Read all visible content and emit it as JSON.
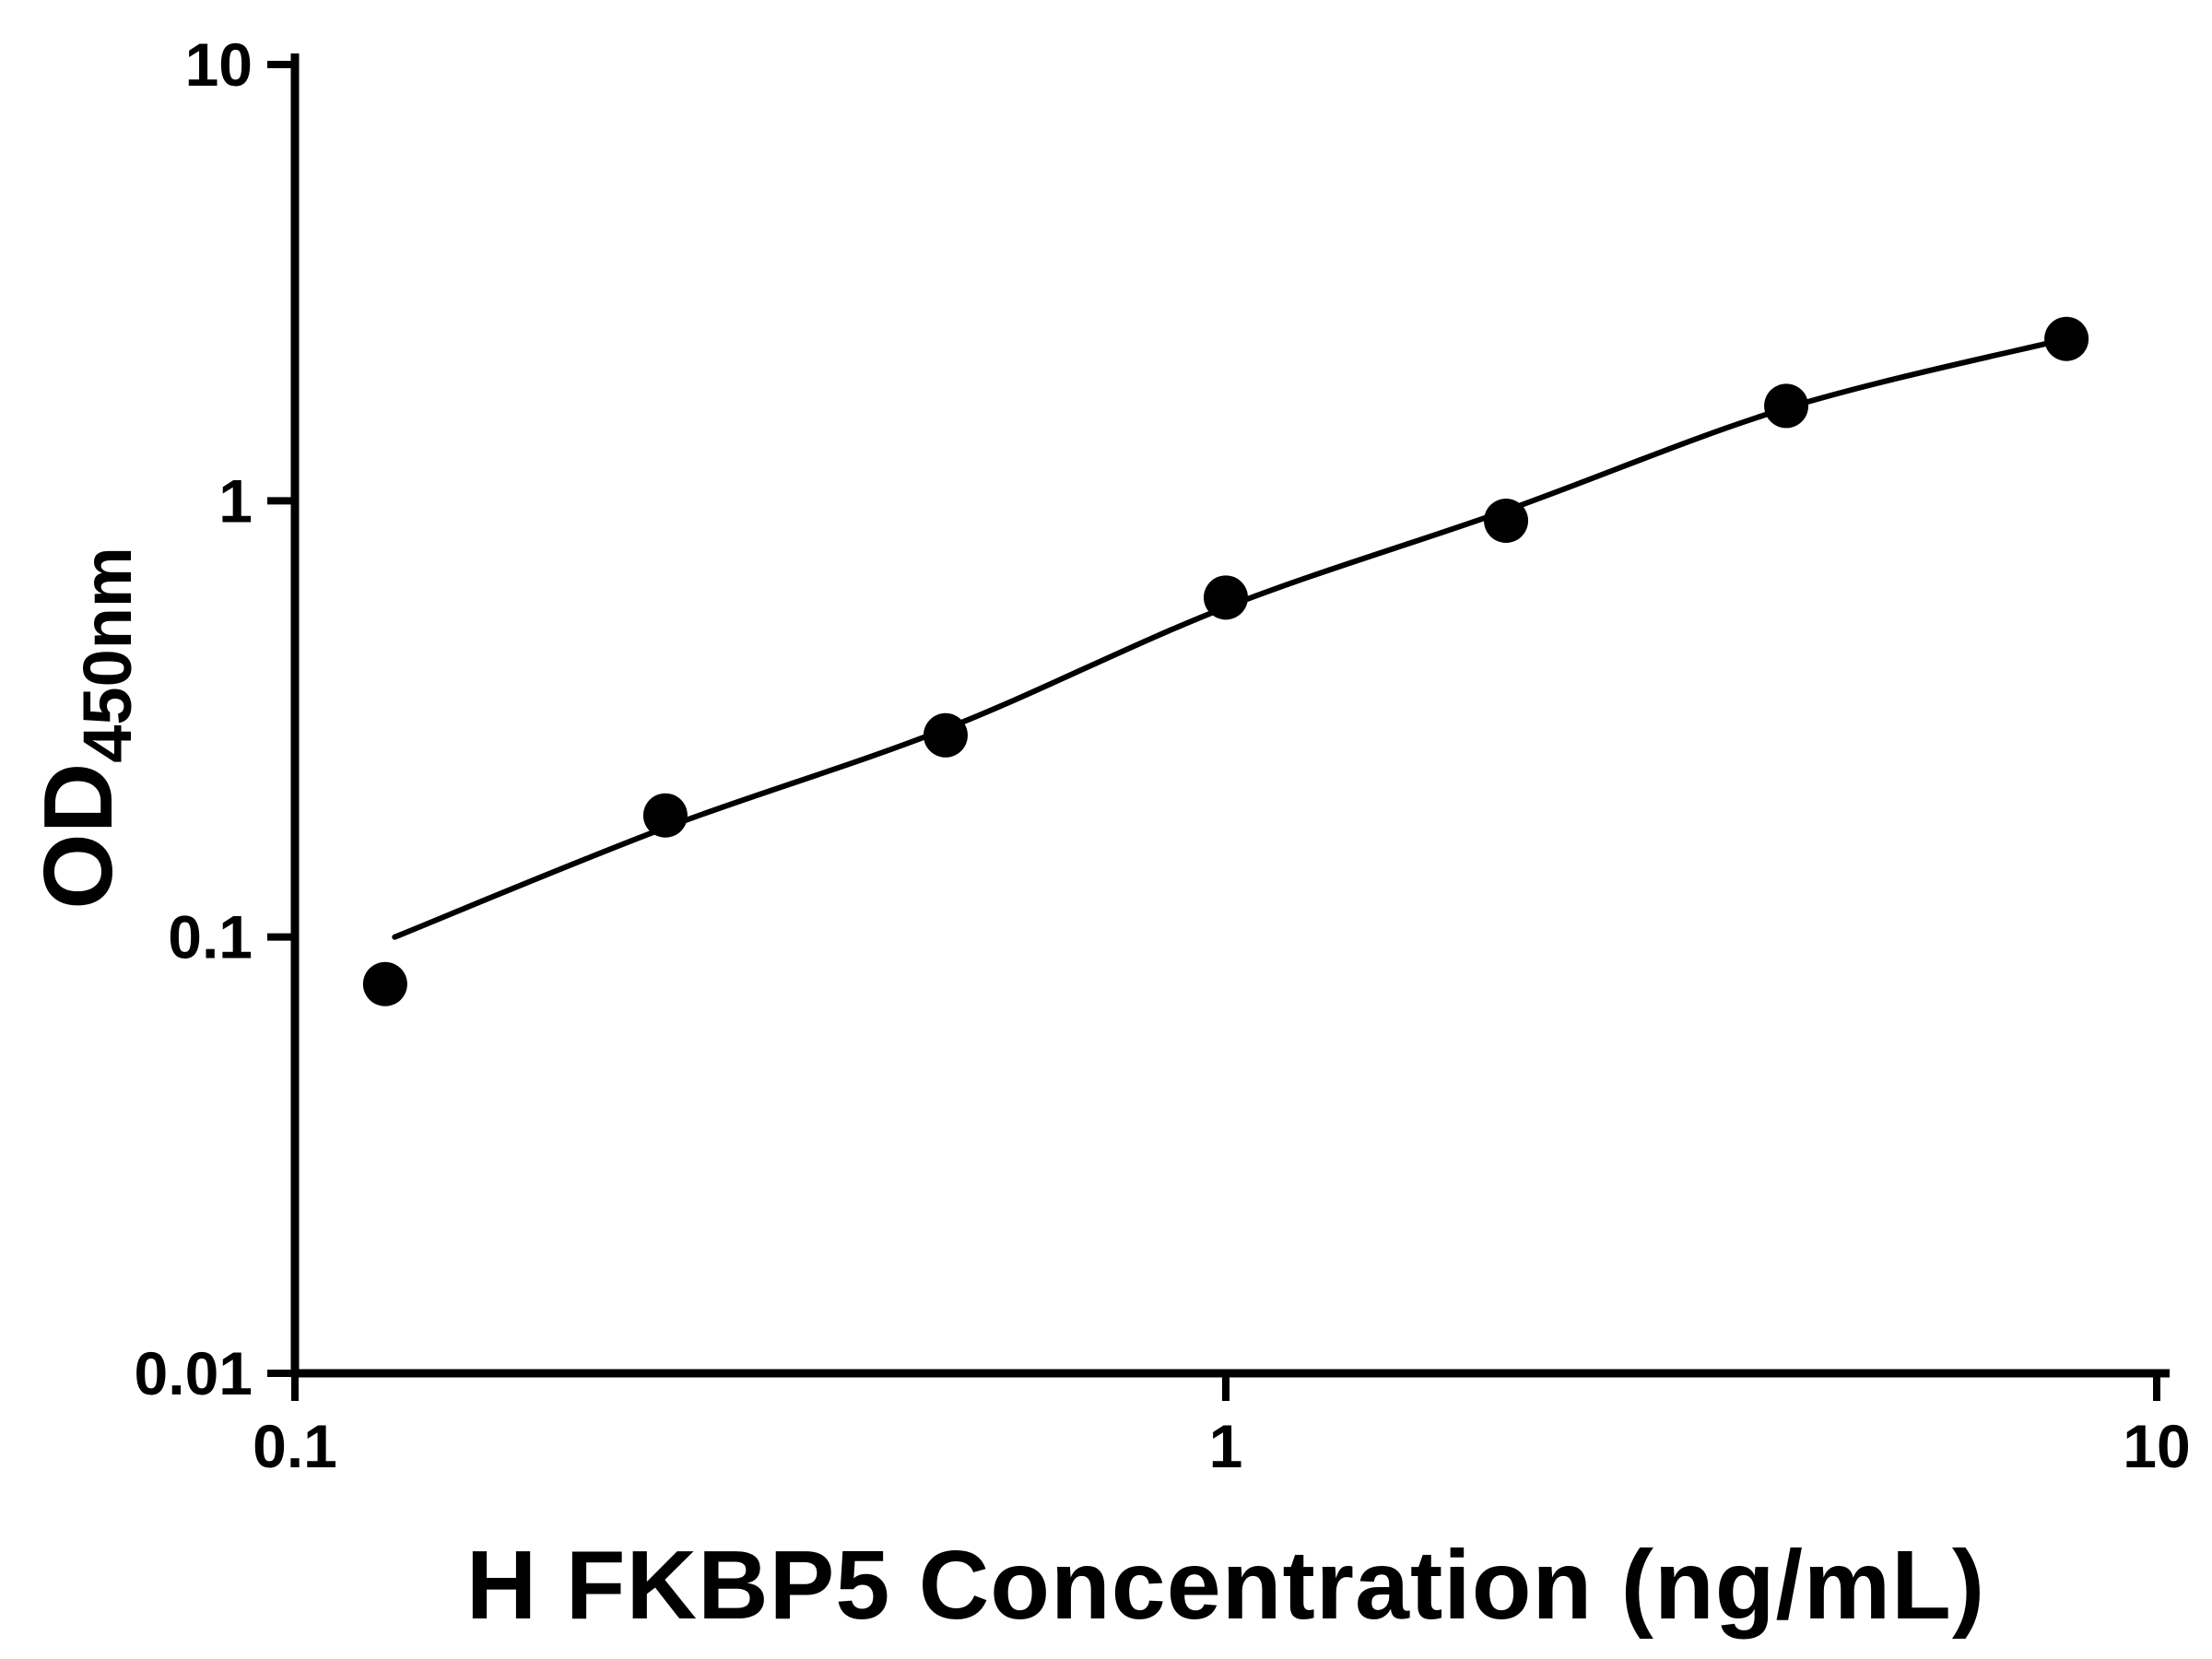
{
  "chart_data": {
    "type": "scatter",
    "title": "",
    "xlabel": "H FKBP5 Concentration (ng/mL)",
    "ylabel_main": "OD",
    "ylabel_sub": "450nm",
    "x_scale": "log",
    "y_scale": "log",
    "xlim": [
      0.1,
      10
    ],
    "ylim": [
      0.01,
      10
    ],
    "grid": false,
    "legend": false,
    "background_color": "#ffffff",
    "axis_color": "#000000",
    "x_ticks": [
      {
        "value": 0.1,
        "label": "0.1"
      },
      {
        "value": 1,
        "label": "1"
      },
      {
        "value": 10,
        "label": "10"
      }
    ],
    "y_ticks": [
      {
        "value": 0.01,
        "label": "0.01"
      },
      {
        "value": 0.1,
        "label": "0.1"
      },
      {
        "value": 1,
        "label": "1"
      },
      {
        "value": 10,
        "label": "10"
      }
    ],
    "series": [
      {
        "name": "H FKBP5 standard curve points",
        "marker": "circle",
        "color": "#000000",
        "points": [
          {
            "x": 0.125,
            "y": 0.078
          },
          {
            "x": 0.25,
            "y": 0.19
          },
          {
            "x": 0.5,
            "y": 0.29
          },
          {
            "x": 1,
            "y": 0.6
          },
          {
            "x": 2,
            "y": 0.9
          },
          {
            "x": 4,
            "y": 1.65
          },
          {
            "x": 8,
            "y": 2.35
          }
        ]
      }
    ],
    "fit_curve": {
      "name": "4PL fit curve",
      "color": "#000000",
      "points": [
        {
          "x": 0.128,
          "y": 0.1
        },
        {
          "x": 0.25,
          "y": 0.178
        },
        {
          "x": 0.5,
          "y": 0.3
        },
        {
          "x": 1,
          "y": 0.57
        },
        {
          "x": 2,
          "y": 0.95
        },
        {
          "x": 4,
          "y": 1.63
        },
        {
          "x": 8,
          "y": 2.35
        }
      ]
    }
  }
}
